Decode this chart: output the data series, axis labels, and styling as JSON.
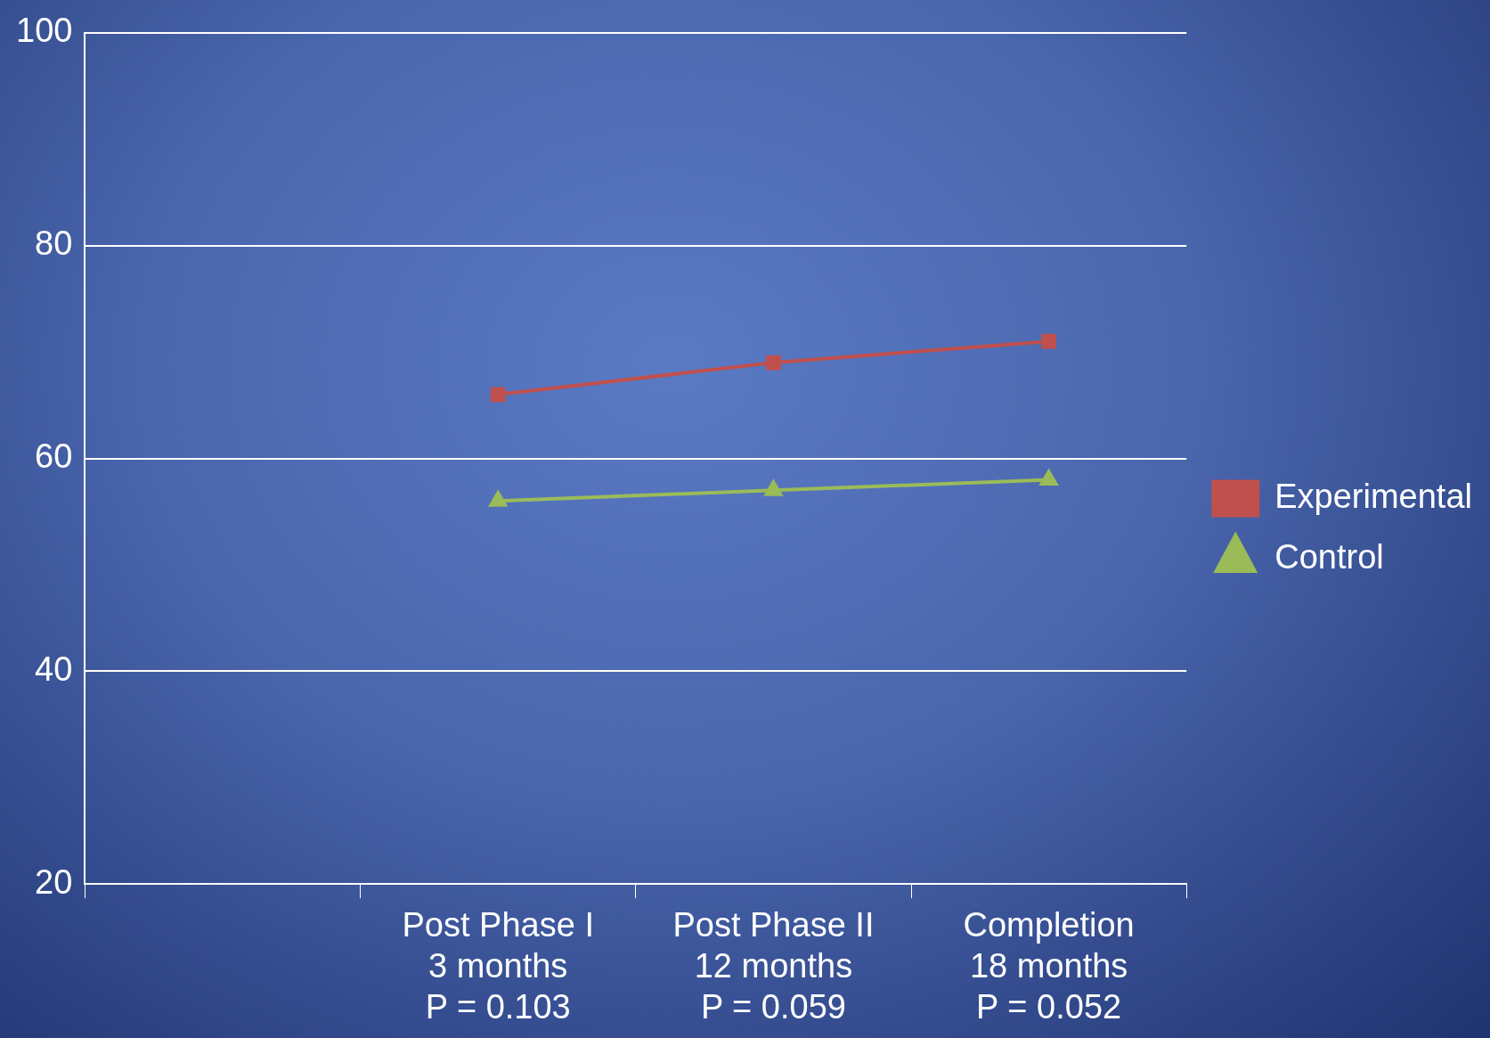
{
  "chart_data": {
    "type": "line",
    "categories": [
      null,
      "Post Phase I\n3 months\nP = 0.103",
      "Post Phase II\n12 months\nP = 0.059",
      "Completion\n18 months\nP = 0.052"
    ],
    "series": [
      {
        "name": "Experimental",
        "color": "#c0504d",
        "values": [
          null,
          66,
          69,
          71
        ],
        "marker": "square"
      },
      {
        "name": "Control",
        "color": "#9bbb59",
        "values": [
          null,
          56,
          57,
          58
        ],
        "marker": "triangle"
      }
    ],
    "ylim": [
      20,
      100
    ],
    "yticks": [
      20,
      40,
      60,
      80,
      100
    ],
    "grid": "y",
    "legend": "right",
    "line_style": "solid"
  }
}
